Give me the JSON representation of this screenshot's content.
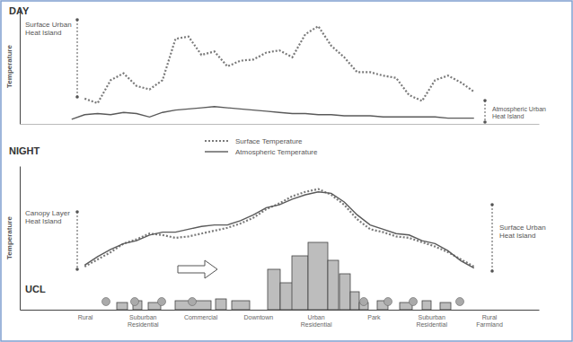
{
  "chart_data": [
    {
      "type": "line",
      "title": "DAY",
      "y_label": "Temperature",
      "x": [
        10,
        12.5,
        15,
        17.5,
        20,
        22.5,
        25,
        27.5,
        30,
        32.5,
        35,
        37.5,
        40,
        42.5,
        45,
        47.5,
        50,
        52.5,
        55,
        57.5,
        60,
        62.5,
        65,
        67.5,
        70,
        72.5,
        75,
        77.5,
        80,
        82.5,
        85,
        87.5,
        90
      ],
      "xlim": [
        0,
        100
      ],
      "ylim": [
        0,
        100
      ],
      "tick_labels": false,
      "legend": "bottom",
      "annotations": [
        "Surface Urban Heat Island",
        "Atmospheric Urban Heat Island"
      ],
      "series": [
        {
          "name": "Surface Temperature",
          "color": "#7a7a7a",
          "line_style": "dotted",
          "values": [
            null,
            22,
            18,
            38,
            44,
            33,
            30,
            38,
            74,
            76,
            60,
            63,
            50,
            55,
            56,
            62,
            64,
            58,
            78,
            85,
            68,
            58,
            45,
            45,
            42,
            40,
            25,
            20,
            38,
            42,
            36,
            28,
            null
          ]
        },
        {
          "name": "Atmospheric Temperature",
          "color": "#5a5a5a",
          "line_style": "solid",
          "values": [
            4,
            8,
            9,
            8,
            10,
            9,
            6,
            10,
            12,
            13,
            14,
            15,
            14,
            13,
            12,
            11,
            10,
            9,
            9,
            8,
            8,
            7,
            7,
            7,
            6,
            6,
            6,
            6,
            6,
            5,
            5,
            5,
            null
          ]
        }
      ]
    },
    {
      "type": "line",
      "title": "NIGHT",
      "y_label": "Temperature",
      "x": [
        10,
        12.5,
        15,
        17.5,
        20,
        22.5,
        25,
        27.5,
        30,
        32.5,
        35,
        37.5,
        40,
        42.5,
        45,
        47.5,
        50,
        52.5,
        55,
        57.5,
        60,
        62.5,
        65,
        67.5,
        70,
        72.5,
        75,
        77.5,
        80,
        82.5,
        85,
        87.5,
        90
      ],
      "xlim": [
        0,
        100
      ],
      "ylim": [
        0,
        100
      ],
      "tick_labels": false,
      "annotations": [
        "Canopy Layer Heat Island",
        "Surface Urban Heat Island"
      ],
      "ucl_label": "UCL",
      "zone_labels": [
        "Rural",
        "Suburban Residential",
        "Commercial",
        "Downtown",
        "Urban Residential",
        "Park",
        "Suburban Residential",
        "Rural Farmland"
      ],
      "series": [
        {
          "color": "#7a7a7a",
          "line_style": "dotted",
          "values": [
            null,
            30,
            35,
            40,
            46,
            49,
            53,
            52,
            50,
            51,
            53,
            55,
            57,
            60,
            64,
            70,
            74,
            79,
            82,
            84,
            80,
            73,
            63,
            56,
            54,
            51,
            50,
            47,
            44,
            40,
            35,
            30,
            null
          ]
        },
        {
          "color": "#5a5a5a",
          "line_style": "solid",
          "values": [
            null,
            31,
            37,
            42,
            46,
            48,
            52,
            54,
            54,
            56,
            58,
            59,
            59,
            62,
            66,
            71,
            73,
            77,
            80,
            82,
            81,
            75,
            66,
            59,
            56,
            53,
            52,
            48,
            46,
            41,
            34,
            29,
            null
          ]
        }
      ]
    }
  ]
}
